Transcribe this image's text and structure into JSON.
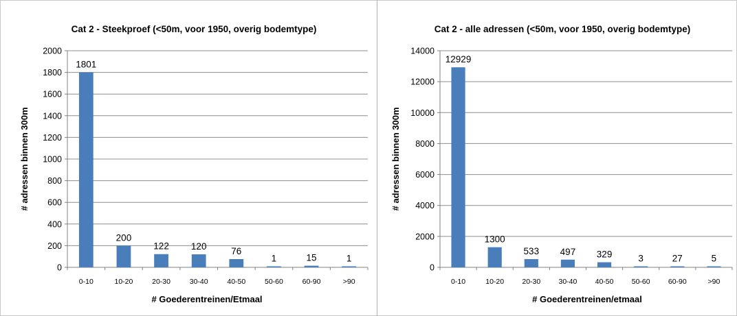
{
  "chart_data": [
    {
      "type": "bar",
      "title": "Cat 2 - Steekproef (<50m, voor 1950, overig bodemtype)",
      "xlabel": "# Goederentreinen/Etmaal",
      "ylabel": "# adressen binnen 300m",
      "categories": [
        "0-10",
        "10-20",
        "20-30",
        "30-40",
        "40-50",
        "50-60",
        "60-90",
        ">90"
      ],
      "values": [
        1801,
        200,
        122,
        120,
        76,
        1,
        15,
        1
      ],
      "data_labels": [
        "1801",
        "200",
        "122",
        "120",
        "76",
        "1",
        "15",
        "1"
      ],
      "ylim": [
        0,
        2000
      ],
      "yticks": [
        "0",
        "200",
        "400",
        "600",
        "800",
        "1000",
        "1200",
        "1400",
        "1600",
        "1800",
        "2000"
      ],
      "ytick_values": [
        0,
        200,
        400,
        600,
        800,
        1000,
        1200,
        1400,
        1600,
        1800,
        2000
      ],
      "grid": true,
      "legend": "none",
      "bar_color": "#4a7ebb",
      "grid_color": "#8c8c8c"
    },
    {
      "type": "bar",
      "title": "Cat 2 - alle adressen (<50m, voor 1950, overig bodemtype)",
      "xlabel": "# Goederentreinen/etmaal",
      "ylabel": "# adressen binnen 300m",
      "categories": [
        "0-10",
        "10-20",
        "20-30",
        "30-40",
        "40-50",
        "50-60",
        "60-90",
        ">90"
      ],
      "values": [
        12929,
        1300,
        533,
        497,
        329,
        3,
        27,
        5
      ],
      "data_labels": [
        "12929",
        "1300",
        "533",
        "497",
        "329",
        "3",
        "27",
        "5"
      ],
      "ylim": [
        0,
        14000
      ],
      "yticks": [
        "0",
        "2000",
        "4000",
        "6000",
        "8000",
        "10000",
        "12000",
        "14000"
      ],
      "ytick_values": [
        0,
        2000,
        4000,
        6000,
        8000,
        10000,
        12000,
        14000
      ],
      "grid": true,
      "legend": "none",
      "bar_color": "#4a7ebb",
      "grid_color": "#8c8c8c"
    }
  ]
}
